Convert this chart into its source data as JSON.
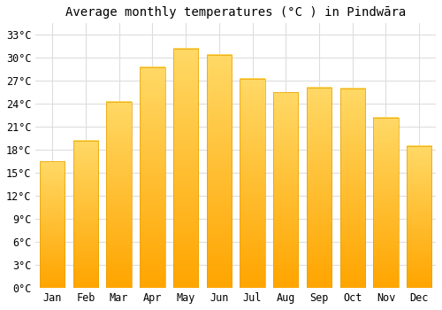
{
  "title": "Average monthly temperatures (°C ) in Pindwāra",
  "months": [
    "Jan",
    "Feb",
    "Mar",
    "Apr",
    "May",
    "Jun",
    "Jul",
    "Aug",
    "Sep",
    "Oct",
    "Nov",
    "Dec"
  ],
  "values": [
    16.5,
    19.2,
    24.3,
    28.8,
    31.2,
    30.4,
    27.3,
    25.5,
    26.1,
    26.0,
    22.2,
    18.5
  ],
  "bar_color_top": "#FFD966",
  "bar_color_bottom": "#FFA500",
  "background_color": "#FFFFFF",
  "grid_color": "#DDDDDD",
  "yticks": [
    0,
    3,
    6,
    9,
    12,
    15,
    18,
    21,
    24,
    27,
    30,
    33
  ],
  "ylim": [
    0,
    34.5
  ],
  "title_fontsize": 10,
  "tick_fontsize": 8.5,
  "bar_width": 0.75
}
